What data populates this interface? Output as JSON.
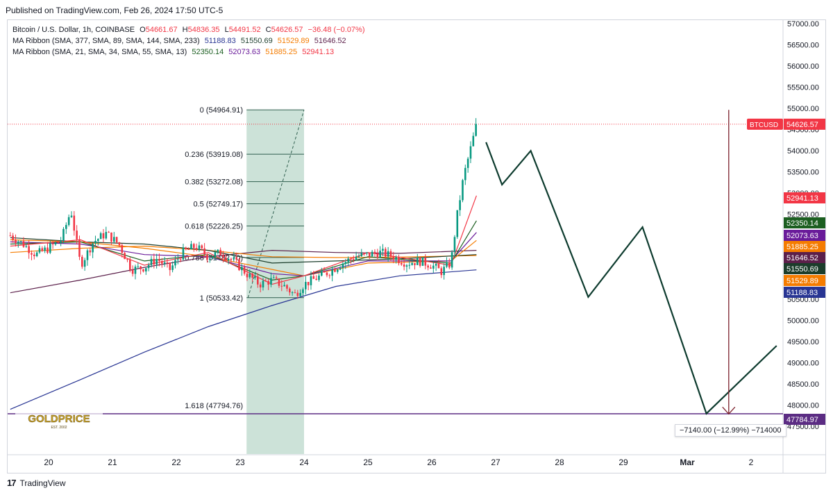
{
  "header": {
    "published": "Published on TradingView.com, Feb 26, 2024 17:50 UTC-5"
  },
  "legend": {
    "symbol_line": {
      "name": "Bitcoin / U.S. Dollar, 1h, COINBASE",
      "open_label": "O",
      "open": "54661.67",
      "high_label": "H",
      "high": "54836.35",
      "low_label": "L",
      "low": "54491.52",
      "close_label": "C",
      "close": "54626.57",
      "change": "−36.48 (−0.07%)"
    },
    "ribbon1": {
      "label": "MA Ribbon (SMA, 377, SMA, 89, SMA, 144, SMA, 233)",
      "values": [
        "51188.83",
        "51550.69",
        "51529.89",
        "51646.52"
      ],
      "colors": [
        "#283593",
        "#1b3d2b",
        "#f57c00",
        "#5b1f4a"
      ]
    },
    "ribbon2": {
      "label": "MA Ribbon (SMA, 21, SMA, 34, SMA, 55, SMA, 13)",
      "values": [
        "52350.14",
        "52073.63",
        "51885.25",
        "52941.13"
      ],
      "colors": [
        "#1b5e20",
        "#6a1b9a",
        "#f57c00",
        "#f23645"
      ]
    }
  },
  "chart_data": {
    "type": "candlestick",
    "symbol": "BTCUSD",
    "interval": "1h",
    "y_axis": {
      "min": 47500,
      "max": 57000,
      "ticks": [
        "57000.00",
        "56500.00",
        "56000.00",
        "55500.00",
        "55000.00",
        "54500.00",
        "54000.00",
        "53500.00",
        "53000.00",
        "52500.00",
        "52000.00",
        "51500.00",
        "51000.00",
        "50500.00",
        "50000.00",
        "49500.00",
        "49000.00",
        "48500.00",
        "48000.00",
        "47500.00"
      ]
    },
    "x_axis": {
      "ticks": [
        "20",
        "21",
        "22",
        "23",
        "24",
        "25",
        "26",
        "27",
        "28",
        "29",
        "Mar",
        "2"
      ]
    },
    "last_price": {
      "label": "BTCUSD",
      "value": "54626.57",
      "color": "#f23645"
    },
    "price_labels": [
      {
        "value": "52941.13",
        "color": "#f23645"
      },
      {
        "value": "52350.14",
        "color": "#1b5e20"
      },
      {
        "value": "52073.63",
        "color": "#6a1b9a"
      },
      {
        "value": "51885.25",
        "color": "#f57c00"
      },
      {
        "value": "51646.52",
        "color": "#5b1f4a"
      },
      {
        "value": "51550.69",
        "color": "#1b3d2b"
      },
      {
        "value": "51529.89",
        "color": "#f57c00"
      },
      {
        "value": "51188.83",
        "color": "#283593"
      },
      {
        "value": "47784.97",
        "color": "#5b2c83"
      }
    ],
    "fibonacci": [
      {
        "ratio": "0",
        "price": 54964.91,
        "label": "0 (54964.91)"
      },
      {
        "ratio": "0.236",
        "price": 53919.08,
        "label": "0.236 (53919.08)"
      },
      {
        "ratio": "0.382",
        "price": 53272.08,
        "label": "0.382 (53272.08)"
      },
      {
        "ratio": "0.5",
        "price": 52749.17,
        "label": "0.5 (52749.17)"
      },
      {
        "ratio": "0.618",
        "price": 52226.25,
        "label": "0.618 (52226.25)"
      },
      {
        "ratio": "0.786",
        "price": 51482.7,
        "label": "0.786 (51482.70)"
      },
      {
        "ratio": "1",
        "price": 50533.42,
        "label": "1 (50533.42)"
      },
      {
        "ratio": "1.618",
        "price": 47794.76,
        "label": "1.618 (47794.76)"
      }
    ],
    "fib_zone": {
      "start_day": 23.1,
      "end_day": 24.0
    },
    "projection_path": [
      {
        "day": 26.85,
        "price": 54200
      },
      {
        "day": 27.1,
        "price": 53200
      },
      {
        "day": 27.55,
        "price": 54000
      },
      {
        "day": 28.45,
        "price": 50550
      },
      {
        "day": 29.3,
        "price": 52200
      },
      {
        "day": 30.3,
        "price": 47800
      },
      {
        "day": 31.4,
        "price": 49400
      }
    ],
    "target_line": {
      "price": 47784.97
    },
    "measure_arrow": {
      "day": 30.65,
      "from": 54965,
      "to": 47790,
      "label": "−7140.00 (−12.99%) −714000"
    },
    "ma_lines": [
      {
        "name": "SMA 377",
        "color": "#283593",
        "points": [
          [
            19.4,
            47900
          ],
          [
            20.5,
            48600
          ],
          [
            21.5,
            49250
          ],
          [
            22.5,
            49850
          ],
          [
            23.5,
            50350
          ],
          [
            24.5,
            50800
          ],
          [
            25.5,
            51050
          ],
          [
            26.7,
            51190
          ]
        ]
      },
      {
        "name": "SMA 233",
        "color": "#5b1f4a",
        "points": [
          [
            19.4,
            50650
          ],
          [
            20.5,
            50950
          ],
          [
            21.5,
            51250
          ],
          [
            22.5,
            51500
          ],
          [
            23.5,
            51650
          ],
          [
            24.5,
            51600
          ],
          [
            25.5,
            51580
          ],
          [
            26.7,
            51650
          ]
        ]
      },
      {
        "name": "SMA 144",
        "color": "#f57c00",
        "points": [
          [
            19.4,
            51600
          ],
          [
            20.5,
            51700
          ],
          [
            21.5,
            51750
          ],
          [
            22.5,
            51650
          ],
          [
            23.5,
            51500
          ],
          [
            24.5,
            51480
          ],
          [
            25.5,
            51490
          ],
          [
            26.7,
            51530
          ]
        ]
      },
      {
        "name": "SMA 89",
        "color": "#1b3d2b",
        "points": [
          [
            19.4,
            51950
          ],
          [
            20.5,
            51850
          ],
          [
            21.5,
            51800
          ],
          [
            22.5,
            51650
          ],
          [
            23.5,
            51350
          ],
          [
            24.5,
            51400
          ],
          [
            25.5,
            51450
          ],
          [
            26.7,
            51550
          ]
        ]
      },
      {
        "name": "SMA 55",
        "color": "#f57c00",
        "points": [
          [
            19.4,
            51900
          ],
          [
            20.5,
            51850
          ],
          [
            21.5,
            51700
          ],
          [
            22.5,
            51500
          ],
          [
            23.5,
            51200
          ],
          [
            24.0,
            51050
          ],
          [
            25.0,
            51350
          ],
          [
            26.3,
            51400
          ],
          [
            26.7,
            51885
          ]
        ]
      },
      {
        "name": "SMA 34",
        "color": "#6a1b9a",
        "points": [
          [
            19.4,
            51850
          ],
          [
            20.5,
            51800
          ],
          [
            21.5,
            51550
          ],
          [
            22.5,
            51500
          ],
          [
            23.5,
            51100
          ],
          [
            24.0,
            51050
          ],
          [
            25.0,
            51400
          ],
          [
            26.3,
            51400
          ],
          [
            26.7,
            52073
          ]
        ]
      },
      {
        "name": "SMA 21",
        "color": "#1b5e20",
        "points": [
          [
            19.4,
            51800
          ],
          [
            20.5,
            51850
          ],
          [
            21.5,
            51400
          ],
          [
            22.5,
            51550
          ],
          [
            23.5,
            50950
          ],
          [
            24.0,
            51050
          ],
          [
            25.0,
            51500
          ],
          [
            26.3,
            51350
          ],
          [
            26.7,
            52350
          ]
        ]
      },
      {
        "name": "SMA 13",
        "color": "#f23645",
        "points": [
          [
            19.4,
            51750
          ],
          [
            20.5,
            51900
          ],
          [
            21.5,
            51300
          ],
          [
            22.5,
            51600
          ],
          [
            23.5,
            50850
          ],
          [
            24.0,
            51050
          ],
          [
            25.0,
            51600
          ],
          [
            26.3,
            51300
          ],
          [
            26.7,
            52941
          ]
        ]
      }
    ],
    "price_path": [
      [
        19.4,
        52000
      ],
      [
        19.6,
        51800
      ],
      [
        19.8,
        51550
      ],
      [
        20.0,
        51700
      ],
      [
        20.2,
        51900
      ],
      [
        20.35,
        52600
      ],
      [
        20.5,
        51300
      ],
      [
        20.7,
        51850
      ],
      [
        20.9,
        52050
      ],
      [
        21.1,
        51800
      ],
      [
        21.3,
        51200
      ],
      [
        21.5,
        51250
      ],
      [
        21.7,
        51450
      ],
      [
        21.9,
        51200
      ],
      [
        22.1,
        51600
      ],
      [
        22.3,
        51750
      ],
      [
        22.5,
        51500
      ],
      [
        22.7,
        51600
      ],
      [
        22.9,
        51400
      ],
      [
        23.1,
        51100
      ],
      [
        23.3,
        50850
      ],
      [
        23.5,
        50950
      ],
      [
        23.7,
        50800
      ],
      [
        23.85,
        50600
      ],
      [
        24.0,
        50850
      ],
      [
        24.2,
        51000
      ],
      [
        24.4,
        51150
      ],
      [
        24.6,
        51350
      ],
      [
        24.8,
        51500
      ],
      [
        25.0,
        51550
      ],
      [
        25.2,
        51600
      ],
      [
        25.4,
        51500
      ],
      [
        25.6,
        51350
      ],
      [
        25.8,
        51400
      ],
      [
        26.0,
        51300
      ],
      [
        26.15,
        51150
      ],
      [
        26.3,
        51350
      ],
      [
        26.4,
        52500
      ],
      [
        26.5,
        53400
      ],
      [
        26.6,
        54000
      ],
      [
        26.7,
        54620
      ]
    ]
  }
}
